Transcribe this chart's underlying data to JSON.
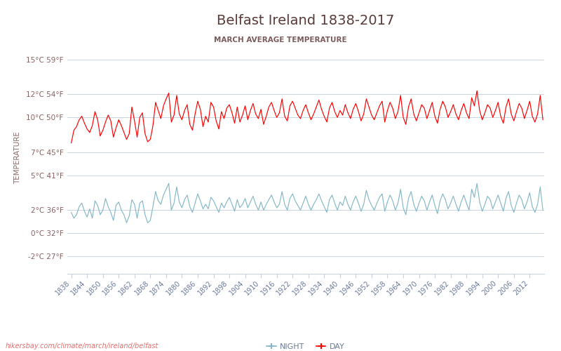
{
  "title": "Belfast Ireland 1838-2017",
  "subtitle": "MARCH AVERAGE TEMPERATURE",
  "ylabel": "TEMPERATURE",
  "url": "hikersbay.com/climate/march/ireland/belfast",
  "yticks_c": [
    -2,
    0,
    2,
    5,
    7,
    10,
    12,
    15
  ],
  "yticks_f": [
    27,
    32,
    36,
    41,
    45,
    50,
    54,
    59
  ],
  "ylim": [
    -3.5,
    16.5
  ],
  "xlim": [
    1836.5,
    2017.5
  ],
  "xticks": [
    1838,
    1844,
    1850,
    1856,
    1862,
    1868,
    1874,
    1880,
    1886,
    1892,
    1898,
    1904,
    1910,
    1916,
    1922,
    1928,
    1934,
    1940,
    1946,
    1952,
    1958,
    1964,
    1970,
    1976,
    1982,
    1988,
    1994,
    2000,
    2006,
    2012
  ],
  "title_color": "#5a3a3a",
  "subtitle_color": "#7a5a5a",
  "axis_label_color": "#8a6a6a",
  "tick_label_color": "#8a6060",
  "day_color": "#ff0000",
  "night_color": "#85b8c8",
  "grid_color": "#c8d4e0",
  "background_color": "#ffffff",
  "legend_night": "NIGHT",
  "legend_day": "DAY",
  "day_temps": [
    7.8,
    8.9,
    9.2,
    9.8,
    10.1,
    9.5,
    9.0,
    8.7,
    9.3,
    10.5,
    9.8,
    8.4,
    8.9,
    9.6,
    10.2,
    9.7,
    8.3,
    9.1,
    9.8,
    9.3,
    8.7,
    8.1,
    8.6,
    10.9,
    9.7,
    8.3,
    10.0,
    10.4,
    8.6,
    7.9,
    8.1,
    9.3,
    11.3,
    10.6,
    9.9,
    11.0,
    11.6,
    12.1,
    9.6,
    10.2,
    11.9,
    10.3,
    9.8,
    10.6,
    11.1,
    9.4,
    8.9,
    10.3,
    11.4,
    10.7,
    9.2,
    10.1,
    9.6,
    11.3,
    10.9,
    9.7,
    9.0,
    10.5,
    9.9,
    10.8,
    11.1,
    10.4,
    9.5,
    10.9,
    9.6,
    10.2,
    11.0,
    9.8,
    10.6,
    11.2,
    10.3,
    9.9,
    10.7,
    9.4,
    10.1,
    10.9,
    11.3,
    10.6,
    10.0,
    10.4,
    11.6,
    10.1,
    9.7,
    11.0,
    11.4,
    10.8,
    10.2,
    9.9,
    10.6,
    11.1,
    10.4,
    9.8,
    10.3,
    10.9,
    11.5,
    10.7,
    10.1,
    9.6,
    10.8,
    11.3,
    10.5,
    10.0,
    10.6,
    10.2,
    11.1,
    10.4,
    9.9,
    10.7,
    11.2,
    10.5,
    9.7,
    10.3,
    11.6,
    10.9,
    10.2,
    9.8,
    10.4,
    11.0,
    11.4,
    9.6,
    10.6,
    11.3,
    10.8,
    9.9,
    10.5,
    11.9,
    10.0,
    9.4,
    10.9,
    11.6,
    10.3,
    9.7,
    10.4,
    11.1,
    10.8,
    9.9,
    10.6,
    11.3,
    10.1,
    9.5,
    10.7,
    11.4,
    10.9,
    10.0,
    10.5,
    11.1,
    10.3,
    9.8,
    10.6,
    11.2,
    10.4,
    9.9,
    11.7,
    11.0,
    12.3,
    10.6,
    9.8,
    10.4,
    11.1,
    10.8,
    10.0,
    10.6,
    11.3,
    10.1,
    9.5,
    10.9,
    11.6,
    10.3,
    9.7,
    10.5,
    11.2,
    10.8,
    9.9,
    10.6,
    11.4,
    10.1,
    9.6,
    10.3,
    11.9,
    9.8
  ],
  "night_temps": [
    1.8,
    1.3,
    1.6,
    2.3,
    2.6,
    1.9,
    1.4,
    2.1,
    1.3,
    2.8,
    2.4,
    1.6,
    2.0,
    3.0,
    2.3,
    1.8,
    1.1,
    2.4,
    2.7,
    2.0,
    1.6,
    0.9,
    1.5,
    2.9,
    2.5,
    1.3,
    2.6,
    2.8,
    1.6,
    0.9,
    1.1,
    2.3,
    3.6,
    2.8,
    2.5,
    3.3,
    3.8,
    4.3,
    2.0,
    2.6,
    4.0,
    2.7,
    2.2,
    2.9,
    3.3,
    2.3,
    1.8,
    2.6,
    3.4,
    2.8,
    2.1,
    2.5,
    2.1,
    3.1,
    2.8,
    2.3,
    1.8,
    2.6,
    2.2,
    2.7,
    3.1,
    2.5,
    1.9,
    2.9,
    2.2,
    2.5,
    3.0,
    2.2,
    2.7,
    3.2,
    2.5,
    2.0,
    2.7,
    2.0,
    2.5,
    2.9,
    3.3,
    2.7,
    2.2,
    2.5,
    3.6,
    2.5,
    2.0,
    3.0,
    3.4,
    2.8,
    2.4,
    2.0,
    2.6,
    3.2,
    2.5,
    2.0,
    2.5,
    2.9,
    3.4,
    2.8,
    2.3,
    1.8,
    2.9,
    3.3,
    2.6,
    2.0,
    2.7,
    2.4,
    3.2,
    2.5,
    2.0,
    2.7,
    3.2,
    2.6,
    1.9,
    2.5,
    3.7,
    2.9,
    2.4,
    2.0,
    2.6,
    3.1,
    3.4,
    1.9,
    2.7,
    3.3,
    2.8,
    2.0,
    2.6,
    3.8,
    2.2,
    1.6,
    3.0,
    3.6,
    2.5,
    1.9,
    2.6,
    3.2,
    2.8,
    2.0,
    2.7,
    3.3,
    2.4,
    1.7,
    2.8,
    3.4,
    2.9,
    2.1,
    2.6,
    3.2,
    2.5,
    1.9,
    2.7,
    3.3,
    2.6,
    2.0,
    3.8,
    3.1,
    4.3,
    2.7,
    1.9,
    2.5,
    3.2,
    2.9,
    2.1,
    2.7,
    3.3,
    2.6,
    1.9,
    3.0,
    3.6,
    2.4,
    1.8,
    2.6,
    3.3,
    2.9,
    2.1,
    2.7,
    3.5,
    2.3,
    1.8,
    2.5,
    4.0,
    2.0
  ]
}
